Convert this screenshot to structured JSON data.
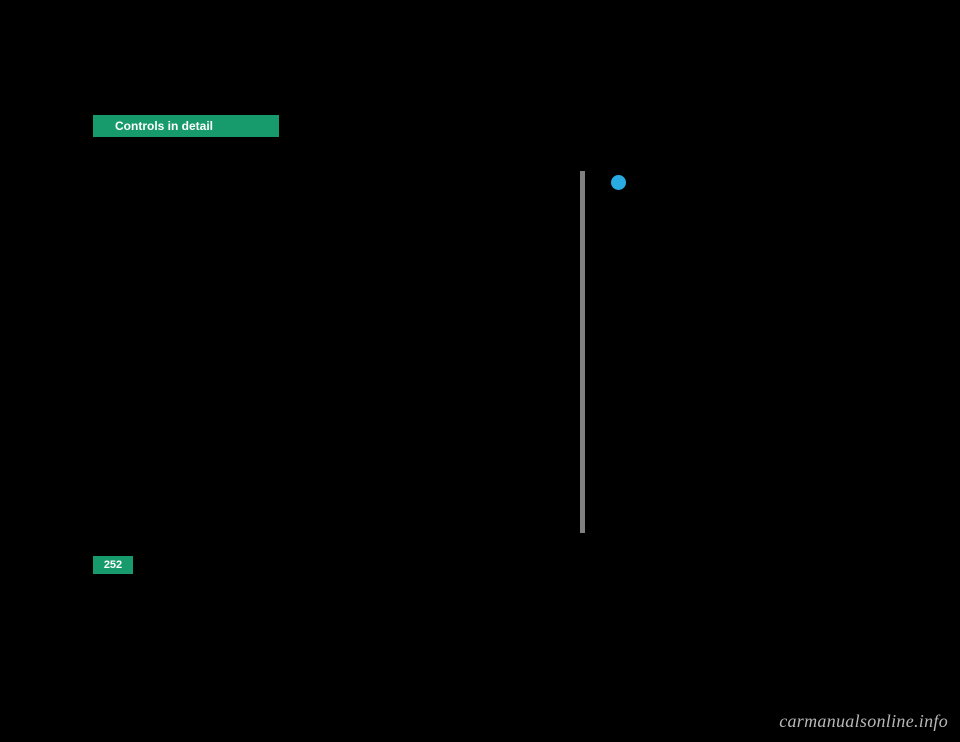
{
  "colors": {
    "background": "#000000",
    "tab_bg": "#189b6c",
    "tab_text": "#ffffff",
    "page_num_bg": "#189b6c",
    "page_num_text": "#ffffff",
    "vertical_bar": "#808080",
    "info_dot": "#29abe2",
    "watermark": "#b8b8b8"
  },
  "header": {
    "section_title": "Controls in detail"
  },
  "footer": {
    "page_number": "252",
    "watermark": "carmanualsonline.info"
  }
}
